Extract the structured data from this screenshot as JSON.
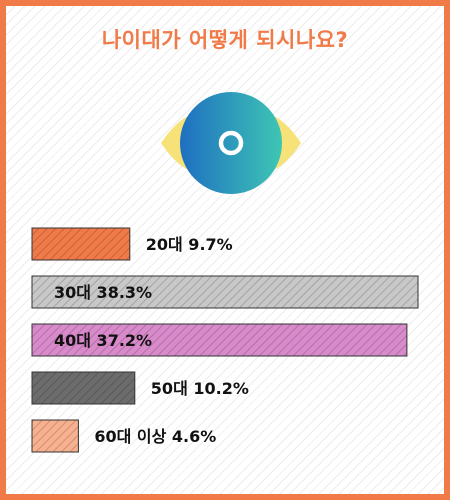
{
  "title": "나이대가 어떻게 되시나요?",
  "icon": "eye-icon",
  "colors": {
    "frame": "#f07b49",
    "title": "#f07b49",
    "eye_left": "#f7e27a",
    "eye_right": "#f7e27a",
    "iris_start": "#1f6fc1",
    "iris_end": "#3ec6b4",
    "pupil_ring": "#ffffff"
  },
  "chart_data": {
    "type": "bar",
    "orientation": "horizontal",
    "categories": [
      "20대",
      "30대",
      "40대",
      "50대",
      "60대 이상"
    ],
    "values": [
      9.7,
      38.3,
      37.2,
      10.2,
      4.6
    ],
    "unit": "%",
    "labels": [
      "20대 9.7%",
      "30대 38.3%",
      "40대 37.2%",
      "50대 10.2%",
      "60대 이상 4.6%"
    ],
    "colors": [
      "#f07b49",
      "#c8c8c8",
      "#d98acb",
      "#6c6c6c",
      "#f7b18f"
    ],
    "grid": false,
    "legend": "none"
  }
}
